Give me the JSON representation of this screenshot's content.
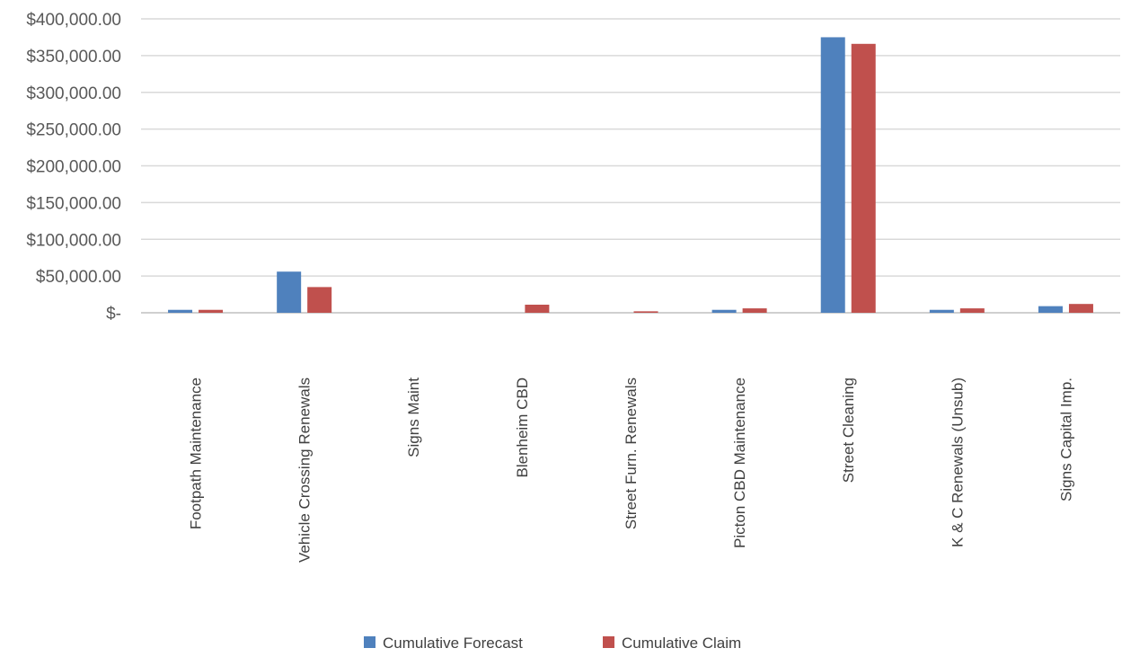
{
  "chart_data": {
    "type": "bar",
    "title": "",
    "xlabel": "",
    "ylabel": "",
    "ylim": [
      0,
      400000
    ],
    "yticks": [
      0,
      50000,
      100000,
      150000,
      200000,
      250000,
      300000,
      350000,
      400000
    ],
    "ytick_labels": [
      "$-",
      "$50,000.00",
      "$100,000.00",
      "$150,000.00",
      "$200,000.00",
      "$250,000.00",
      "$300,000.00",
      "$350,000.00",
      "$400,000.00"
    ],
    "grid": true,
    "legend_position": "bottom",
    "categories": [
      "Footpath Maintenance",
      "Vehicle Crossing Renewals",
      "Signs Maint",
      "Blenheim CBD",
      "Street Furn. Renewals",
      "Picton CBD Maintenance",
      "Street Cleaning",
      "K & C Renewals (Unsub)",
      "Signs Capital Imp."
    ],
    "series": [
      {
        "name": "Cumulative Forecast",
        "color": "#4f81bd",
        "values": [
          4000,
          56000,
          0,
          0,
          0,
          4000,
          375000,
          4000,
          9000
        ]
      },
      {
        "name": "Cumulative Claim",
        "color": "#c0504d",
        "values": [
          4000,
          35000,
          0,
          11000,
          2000,
          6000,
          366000,
          6000,
          12000
        ]
      }
    ]
  }
}
